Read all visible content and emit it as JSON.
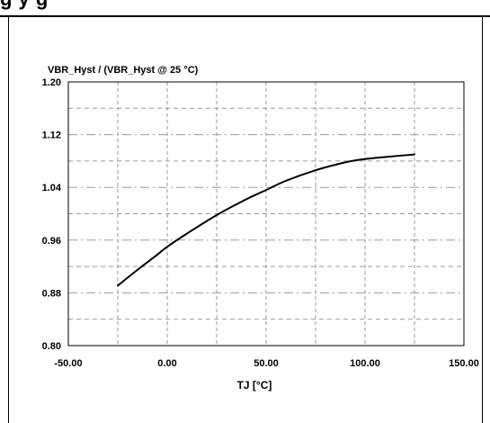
{
  "header": {
    "caption_fragment": "g                        y                   g"
  },
  "chart_data": {
    "type": "line",
    "title": "VBR_Hyst / (VBR_Hyst @ 25 °C)",
    "xlabel": "TJ [°C]",
    "ylabel": "VBR_Hyst / (VBR_Hyst @ 25 °C)",
    "xlim": [
      -50,
      150
    ],
    "ylim": [
      0.8,
      1.2
    ],
    "x_ticks": [
      -50,
      0,
      50,
      100,
      150
    ],
    "x_tick_labels": [
      "-50.00",
      "0.00",
      "50.00",
      "100.00",
      "150.00"
    ],
    "y_ticks": [
      0.8,
      0.88,
      0.96,
      1.04,
      1.12,
      1.2
    ],
    "y_tick_labels": [
      "0.80",
      "0.88",
      "0.96",
      "1.04",
      "1.12",
      "1.20"
    ],
    "grid": true,
    "legend": "none",
    "series": [
      {
        "x": [
          -25,
          -15,
          -5,
          0,
          10,
          25,
          40,
          50,
          60,
          75,
          90,
          100,
          110,
          125
        ],
        "y": [
          0.891,
          0.915,
          0.938,
          0.95,
          0.97,
          0.998,
          1.022,
          1.036,
          1.05,
          1.066,
          1.078,
          1.083,
          1.086,
          1.09
        ],
        "color": "#000000"
      }
    ]
  }
}
